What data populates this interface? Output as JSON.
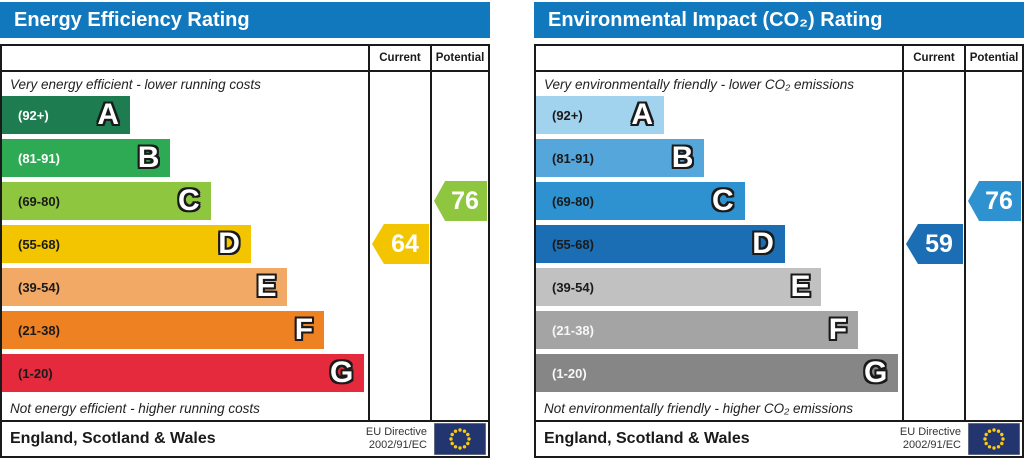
{
  "chart_data": [
    {
      "type": "bar",
      "title": "Energy Efficiency Rating",
      "categories": [
        "A (92+)",
        "B (81-91)",
        "C (69-80)",
        "D (55-68)",
        "E (39-54)",
        "F (21-38)",
        "G (1-20)"
      ],
      "values": [
        35,
        46,
        57,
        68,
        78,
        88,
        99
      ],
      "value_meaning": "relative band bar width percent",
      "current": 64,
      "current_band": "D",
      "potential": 76,
      "potential_band": "C"
    },
    {
      "type": "bar",
      "title": "Environmental Impact (CO₂) Rating",
      "categories": [
        "A (92+)",
        "B (81-91)",
        "C (69-80)",
        "D (55-68)",
        "E (39-54)",
        "F (21-38)",
        "G (1-20)"
      ],
      "values": [
        35,
        46,
        57,
        68,
        78,
        88,
        99
      ],
      "value_meaning": "relative band bar width percent",
      "current": 59,
      "current_band": "D",
      "potential": 76,
      "potential_band": "C"
    }
  ],
  "panels": [
    {
      "columns": {
        "current": "Current",
        "potential": "Potential"
      },
      "top_caption": "Very energy efficient - lower running costs",
      "bottom_caption": "Not energy efficient - higher running costs",
      "bands": [
        {
          "letter": "A",
          "range": "(92+)",
          "color": "#1d7d51",
          "label_color": "#ffffff",
          "width_pct": 35
        },
        {
          "letter": "B",
          "range": "(81-91)",
          "color": "#2faa54",
          "label_color": "#ffffff",
          "width_pct": 46
        },
        {
          "letter": "C",
          "range": "(69-80)",
          "color": "#8ec63f",
          "label_color": "#1a1a1a",
          "width_pct": 57
        },
        {
          "letter": "D",
          "range": "(55-68)",
          "color": "#f3c500",
          "label_color": "#1a1a1a",
          "width_pct": 68
        },
        {
          "letter": "E",
          "range": "(39-54)",
          "color": "#f3a966",
          "label_color": "#1a1a1a",
          "width_pct": 78
        },
        {
          "letter": "F",
          "range": "(21-38)",
          "color": "#ee8122",
          "label_color": "#1a1a1a",
          "width_pct": 88
        },
        {
          "letter": "G",
          "range": "(1-20)",
          "color": "#e52a3d",
          "label_color": "#1a1a1a",
          "width_pct": 99
        }
      ],
      "current": {
        "color": "#f3c500"
      },
      "potential": {
        "color": "#8ec63f"
      },
      "footer": {
        "region": "England, Scotland & Wales",
        "directive_line1": "EU Directive",
        "directive_line2": "2002/91/EC"
      }
    },
    {
      "columns": {
        "current": "Current",
        "potential": "Potential"
      },
      "top_caption": "Very environmentally friendly - lower CO₂ emissions",
      "bottom_caption": "Not environmentally friendly - higher CO₂ emissions",
      "bands": [
        {
          "letter": "A",
          "range": "(92+)",
          "color": "#a2d3ee",
          "label_color": "#1a1a1a",
          "width_pct": 35
        },
        {
          "letter": "B",
          "range": "(81-91)",
          "color": "#55a7db",
          "label_color": "#1a1a1a",
          "width_pct": 46
        },
        {
          "letter": "C",
          "range": "(69-80)",
          "color": "#2e92d0",
          "label_color": "#1a1a1a",
          "width_pct": 57
        },
        {
          "letter": "D",
          "range": "(55-68)",
          "color": "#1b6eb4",
          "label_color": "#1a1a1a",
          "width_pct": 68
        },
        {
          "letter": "E",
          "range": "(39-54)",
          "color": "#c1c1c1",
          "label_color": "#1a1a1a",
          "width_pct": 78
        },
        {
          "letter": "F",
          "range": "(21-38)",
          "color": "#a4a4a4",
          "label_color": "#f7f7f7",
          "width_pct": 88
        },
        {
          "letter": "G",
          "range": "(1-20)",
          "color": "#868686",
          "label_color": "#f7f7f7",
          "width_pct": 99
        }
      ],
      "current": {
        "color": "#1b6eb4"
      },
      "potential": {
        "color": "#2e92d0"
      },
      "footer": {
        "region": "England, Scotland & Wales",
        "directive_line1": "EU Directive",
        "directive_line2": "2002/91/EC"
      }
    }
  ],
  "colors": {
    "header_bar": "#1278bd",
    "table_border": "#1a1a1a",
    "eu_flag_blue": "#23356f",
    "eu_flag_star": "#fdca10"
  },
  "icons": {
    "eu_flag": "eu-flag-icon"
  }
}
